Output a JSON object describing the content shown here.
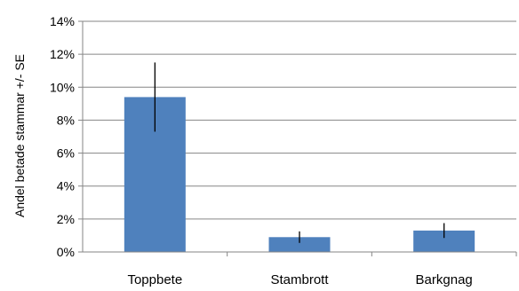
{
  "chart_data": {
    "type": "bar",
    "title": "",
    "xlabel": "",
    "ylabel": "Andel betade stammar +/- SE",
    "categories": [
      "Toppbete",
      "Stambrott",
      "Barkgnag"
    ],
    "values": [
      9.4,
      0.9,
      1.3
    ],
    "errors": [
      2.1,
      0.35,
      0.45
    ],
    "y_unit": "%",
    "ylim": [
      0,
      14
    ],
    "yticks": [
      0,
      2,
      4,
      6,
      8,
      10,
      12,
      14
    ],
    "ytick_labels": [
      "0%",
      "2%",
      "4%",
      "6%",
      "8%",
      "10%",
      "12%",
      "14%"
    ],
    "grid": true,
    "legend": "none",
    "bar_color": "#4f81bd",
    "gridline_color": "#868686",
    "axis_color": "#868686"
  }
}
